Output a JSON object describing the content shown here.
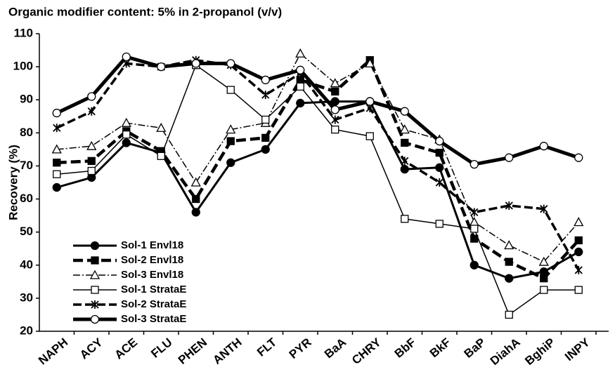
{
  "chart_data": {
    "type": "line",
    "title": "Organic modifier content: 5% in 2-propanol (v/v)",
    "y_label": "Recovery (%)",
    "categories": [
      "NAPH",
      "ACY",
      "ACE",
      "FLU",
      "PHEN",
      "ANTH",
      "FLT",
      "PYR",
      "BaA",
      "CHRY",
      "BbF",
      "BkF",
      "BaP",
      "DiahA",
      "BghiP",
      "INPY"
    ],
    "ylim": [
      20,
      110
    ],
    "yticks": [
      20,
      30,
      40,
      50,
      60,
      70,
      80,
      90,
      100,
      110
    ],
    "legend": "lower-left",
    "series": [
      {
        "name": "Sol-1 Envl18",
        "color": "#000000",
        "marker": "circle-filled",
        "line_style": "solid",
        "values": [
          63.5,
          66.5,
          77,
          74,
          56,
          71,
          75,
          89,
          89.5,
          89.5,
          69,
          69.5,
          40,
          36,
          38,
          44
        ]
      },
      {
        "name": "Sol-2 Envl18",
        "color": "#000000",
        "marker": "square-filled",
        "line_style": "dashed",
        "values": [
          71,
          71.5,
          80.5,
          74.5,
          60,
          77.5,
          78.5,
          96,
          92.5,
          102,
          77,
          74,
          48,
          41,
          36,
          47.5
        ]
      },
      {
        "name": "Sol-3 Envl18",
        "color": "#000000",
        "marker": "triangle-open",
        "line_style": "dash-dot",
        "values": [
          75,
          76,
          83,
          81.5,
          65,
          81,
          83,
          104,
          95,
          101,
          81,
          78,
          53,
          46,
          41,
          53
        ]
      },
      {
        "name": "Sol-1 StrataE",
        "color": "#000000",
        "marker": "square-open",
        "line_style": "thin-solid",
        "values": [
          67.5,
          68.5,
          79.5,
          73,
          100.5,
          93,
          84,
          94,
          81,
          79,
          54,
          52.5,
          51,
          25,
          32.5,
          32.5
        ]
      },
      {
        "name": "Sol-2 StrataE",
        "color": "#000000",
        "marker": "asterisk",
        "line_style": "long-dash",
        "values": [
          81.5,
          86.5,
          101,
          100,
          102,
          100.5,
          91.5,
          98,
          84,
          87.5,
          71.5,
          65,
          56,
          58,
          57,
          38.5
        ]
      },
      {
        "name": "Sol-3 StrataE",
        "color": "#000000",
        "marker": "circle-open",
        "line_style": "thick-solid",
        "values": [
          86,
          91,
          103,
          100,
          101,
          101,
          96,
          99,
          87,
          89.5,
          86.5,
          77.5,
          70.5,
          72.5,
          76,
          72.5
        ]
      }
    ]
  }
}
